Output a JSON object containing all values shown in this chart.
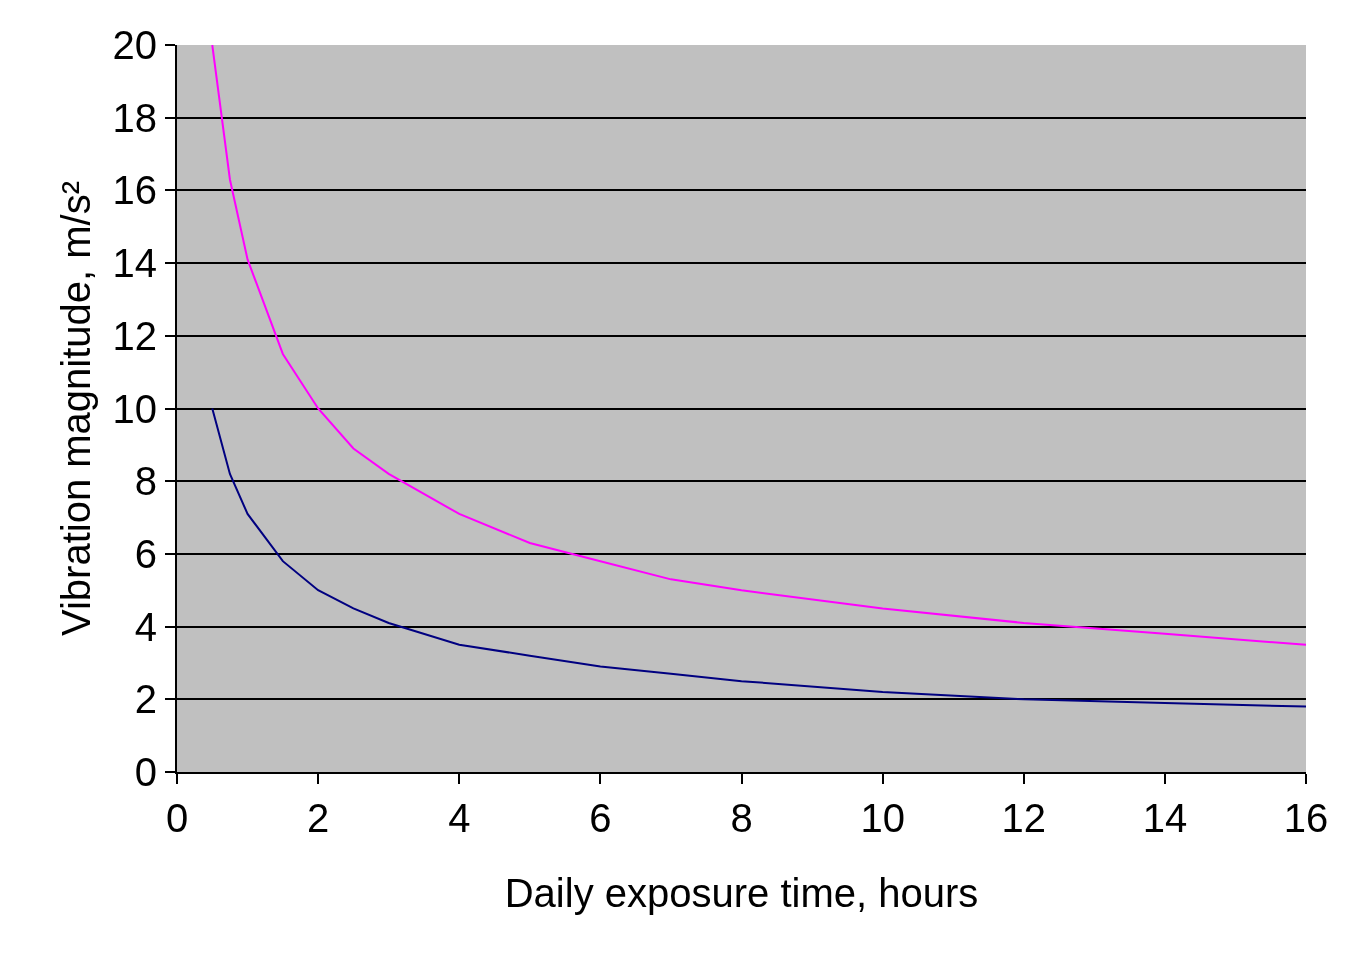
{
  "chart_data": {
    "type": "line",
    "xlabel": "Daily exposure time, hours",
    "ylabel": "Vibration magnitude, m/s²",
    "x": [
      0.5,
      0.75,
      1,
      1.5,
      2,
      2.5,
      3,
      4,
      5,
      6,
      7,
      8,
      10,
      12,
      14,
      16
    ],
    "series": [
      {
        "color": "#ff00ff",
        "values": [
          20,
          16.3,
          14.1,
          11.5,
          10,
          8.9,
          8.2,
          7.1,
          6.3,
          5.8,
          5.3,
          5,
          4.5,
          4.1,
          3.8,
          3.5
        ]
      },
      {
        "color": "#000080",
        "values": [
          10,
          8.2,
          7.1,
          5.8,
          5,
          4.5,
          4.1,
          3.5,
          3.2,
          2.9,
          2.7,
          2.5,
          2.2,
          2.0,
          1.9,
          1.8
        ]
      }
    ],
    "xlim": [
      0,
      16
    ],
    "xticks": [
      0,
      2,
      4,
      6,
      8,
      10,
      12,
      14,
      16
    ],
    "ylim": [
      0,
      20
    ],
    "yticks": [
      0,
      2,
      4,
      6,
      8,
      10,
      12,
      14,
      16,
      18,
      20
    ],
    "grid": "y",
    "marker": "none",
    "line_style": "solid"
  }
}
